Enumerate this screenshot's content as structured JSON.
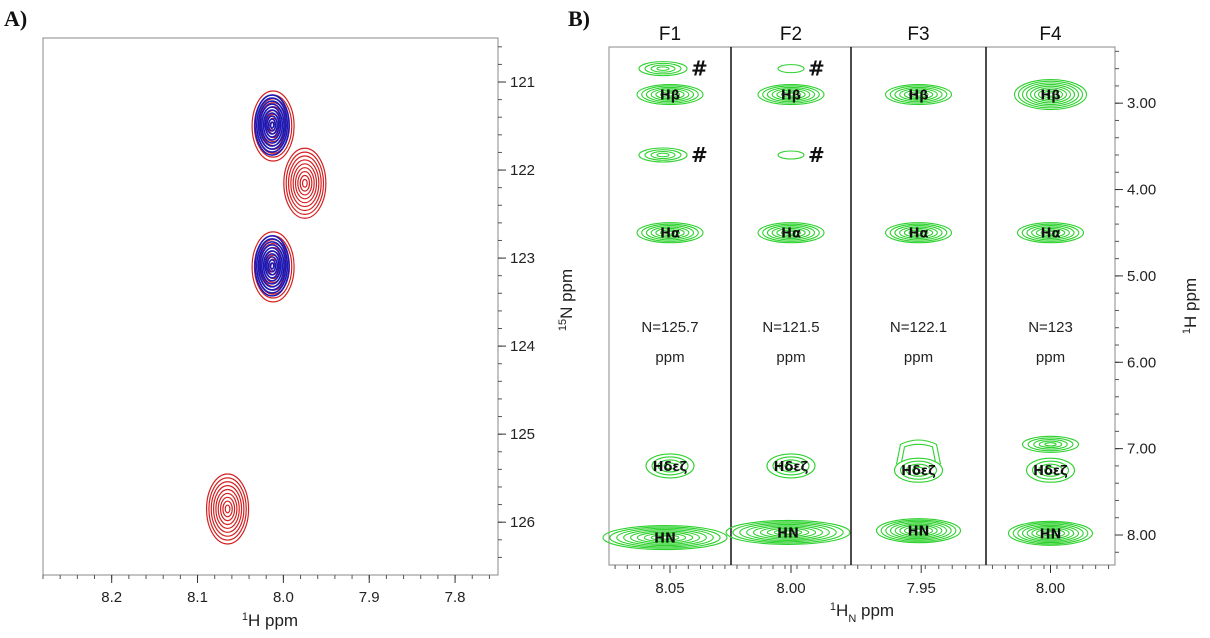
{
  "panels": {
    "a_label": "A)",
    "b_label": "B)"
  },
  "colors": {
    "red": "#d42020",
    "blue": "#1a1ab8",
    "green": "#2ed12e"
  },
  "chart_data": [
    {
      "type": "scatter",
      "panel": "A)",
      "xlabel_sup": "1",
      "xlabel": "H ppm",
      "ylabel_sup": "15",
      "ylabel": "N ppm",
      "xlim": [
        8.28,
        7.75
      ],
      "ylim": [
        120.5,
        126.6
      ],
      "xticks": [
        8.2,
        8.1,
        8.0,
        7.9,
        7.8
      ],
      "xtick_labels": [
        "8.2",
        "8.1",
        "8.0",
        "7.9",
        "7.8"
      ],
      "yticks": [
        121,
        122,
        123,
        124,
        125,
        126
      ],
      "ytick_labels": [
        "121",
        "122",
        "123",
        "124",
        "125",
        "126"
      ],
      "series": [
        {
          "color": "red",
          "peaks": [
            [
              8.065,
              125.85
            ],
            [
              8.012,
              121.5
            ],
            [
              7.975,
              122.15
            ],
            [
              8.012,
              123.1
            ]
          ]
        },
        {
          "color": "blue",
          "peaks": [
            [
              8.012,
              121.5
            ],
            [
              8.012,
              123.1
            ]
          ]
        }
      ]
    },
    {
      "type": "scatter",
      "panel": "B)",
      "xlabel_sup": "1",
      "xlabel_sub": "N",
      "xlabel": "H",
      "xlabel_tail": " ppm",
      "ylabel_sup": "1",
      "ylabel": "H ppm",
      "ylim": [
        2.3,
        8.4
      ],
      "yticks": [
        3.0,
        4.0,
        5.0,
        6.0,
        7.0,
        8.0
      ],
      "ytick_labels": [
        "3.00",
        "4.00",
        "5.00",
        "6.00",
        "7.00",
        "8.00"
      ],
      "strips": [
        {
          "title": "F1",
          "tick_label": "8.05",
          "n_line1": "N=125.7",
          "n_line2": "ppm",
          "peaks": [
            {
              "label": "#",
              "h": 2.6,
              "kind": "hash"
            },
            {
              "label": "Hβ",
              "h": 2.9
            },
            {
              "label": "#",
              "h": 3.6,
              "kind": "hash"
            },
            {
              "label": "Hα",
              "h": 4.5
            },
            {
              "label": "Hδεζ",
              "h": 7.2
            },
            {
              "label": "HN",
              "h": 8.03
            }
          ]
        },
        {
          "title": "F2",
          "tick_label": "8.00",
          "n_line1": "N=121.5",
          "n_line2": "ppm",
          "peaks": [
            {
              "label": "#",
              "h": 2.6,
              "kind": "hash"
            },
            {
              "label": "Hβ",
              "h": 2.9
            },
            {
              "label": "#",
              "h": 3.6,
              "kind": "hash"
            },
            {
              "label": "Hα",
              "h": 4.5
            },
            {
              "label": "Hδεζ",
              "h": 7.2
            },
            {
              "label": "HN",
              "h": 7.97
            }
          ]
        },
        {
          "title": "F3",
          "tick_label": "7.95",
          "n_line1": "N=122.1",
          "n_line2": "ppm",
          "peaks": [
            {
              "label": "Hβ",
              "h": 2.9
            },
            {
              "label": "Hα",
              "h": 4.5
            },
            {
              "label": "Hδεζ",
              "h": 7.25
            },
            {
              "label": "HN",
              "h": 7.95
            }
          ]
        },
        {
          "title": "F4",
          "tick_label": "8.00",
          "n_line1": "N=123",
          "n_line2": "ppm",
          "peaks": [
            {
              "label": "Hβ",
              "h": 2.9
            },
            {
              "label": "Hα",
              "h": 4.5
            },
            {
              "label": "",
              "h": 6.95
            },
            {
              "label": "Hδεζ",
              "h": 7.25
            },
            {
              "label": "HN",
              "h": 7.98
            }
          ]
        }
      ]
    }
  ]
}
